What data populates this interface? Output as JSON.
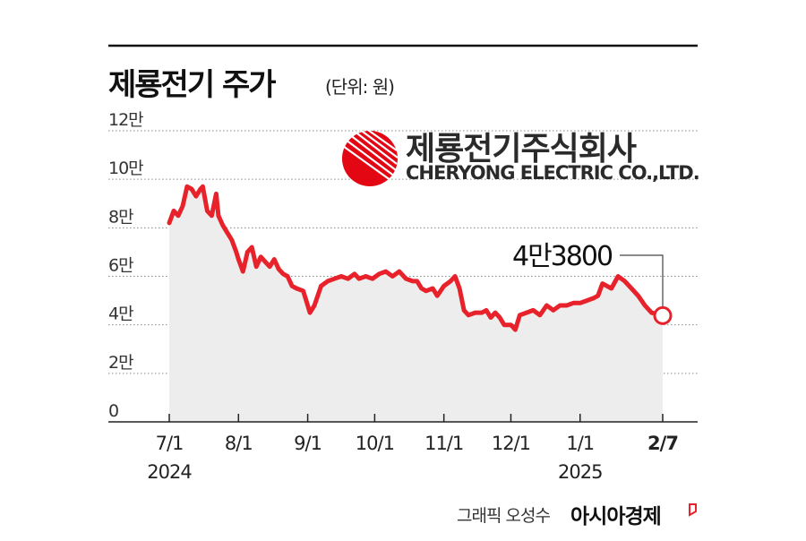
{
  "header": {
    "title": "제룡전기 주가",
    "unit": "(단위: 원)"
  },
  "logo": {
    "name_ko": "제룡전기주식회사",
    "name_en": "CHERYONG ELECTRIC CO.,LTD."
  },
  "footer": {
    "credit": "그래픽 오성수",
    "brand": "아시아경제"
  },
  "colors": {
    "line": "#e8222b",
    "area": "#ededed",
    "logo_red": "#e30613"
  },
  "chart_data": {
    "type": "area",
    "title": "제룡전기 주가",
    "unit": "원",
    "ylim": [
      0,
      120000
    ],
    "yticks": [
      {
        "v": 0,
        "label": "0"
      },
      {
        "v": 20000,
        "label": "2만"
      },
      {
        "v": 40000,
        "label": "4만"
      },
      {
        "v": 60000,
        "label": "6만"
      },
      {
        "v": 80000,
        "label": "8만"
      },
      {
        "v": 100000,
        "label": "10만"
      },
      {
        "v": 120000,
        "label": "12만"
      }
    ],
    "xlim": [
      "2024-07-01",
      "2025-02-07"
    ],
    "xticks": [
      {
        "date": "2024-07-01",
        "label": "7/1",
        "sub": "2024",
        "bold": false
      },
      {
        "date": "2024-08-01",
        "label": "8/1",
        "sub": "",
        "bold": false
      },
      {
        "date": "2024-09-01",
        "label": "9/1",
        "sub": "",
        "bold": false
      },
      {
        "date": "2024-10-01",
        "label": "10/1",
        "sub": "",
        "bold": false
      },
      {
        "date": "2024-11-01",
        "label": "11/1",
        "sub": "",
        "bold": false
      },
      {
        "date": "2024-12-01",
        "label": "12/1",
        "sub": "",
        "bold": false
      },
      {
        "date": "2025-01-01",
        "label": "1/1",
        "sub": "2025",
        "bold": false
      },
      {
        "date": "2025-02-07",
        "label": "2/7",
        "sub": "",
        "bold": true
      }
    ],
    "grid": true,
    "series": [
      {
        "points": [
          [
            "2024-07-01",
            82000
          ],
          [
            "2024-07-03",
            87000
          ],
          [
            "2024-07-05",
            85000
          ],
          [
            "2024-07-07",
            89000
          ],
          [
            "2024-07-09",
            97000
          ],
          [
            "2024-07-11",
            96000
          ],
          [
            "2024-07-13",
            93000
          ],
          [
            "2024-07-15",
            96000
          ],
          [
            "2024-07-16",
            97000
          ],
          [
            "2024-07-18",
            87000
          ],
          [
            "2024-07-20",
            85000
          ],
          [
            "2024-07-22",
            94000
          ],
          [
            "2024-07-23",
            85000
          ],
          [
            "2024-07-25",
            81000
          ],
          [
            "2024-07-27",
            78000
          ],
          [
            "2024-07-29",
            75000
          ],
          [
            "2024-07-31",
            70000
          ],
          [
            "2024-08-01",
            67000
          ],
          [
            "2024-08-03",
            62000
          ],
          [
            "2024-08-05",
            70000
          ],
          [
            "2024-08-07",
            72000
          ],
          [
            "2024-08-09",
            64000
          ],
          [
            "2024-08-11",
            68000
          ],
          [
            "2024-08-13",
            66000
          ],
          [
            "2024-08-15",
            64000
          ],
          [
            "2024-08-17",
            67000
          ],
          [
            "2024-08-19",
            63000
          ],
          [
            "2024-08-21",
            61000
          ],
          [
            "2024-08-23",
            60000
          ],
          [
            "2024-08-25",
            56000
          ],
          [
            "2024-08-27",
            55000
          ],
          [
            "2024-08-30",
            54000
          ],
          [
            "2024-09-01",
            48000
          ],
          [
            "2024-09-02",
            45000
          ],
          [
            "2024-09-04",
            48000
          ],
          [
            "2024-09-07",
            56000
          ],
          [
            "2024-09-10",
            58000
          ],
          [
            "2024-09-13",
            59000
          ],
          [
            "2024-09-16",
            60000
          ],
          [
            "2024-09-19",
            59000
          ],
          [
            "2024-09-22",
            61000
          ],
          [
            "2024-09-24",
            59000
          ],
          [
            "2024-09-27",
            60000
          ],
          [
            "2024-09-30",
            59000
          ],
          [
            "2024-10-03",
            61000
          ],
          [
            "2024-10-06",
            62000
          ],
          [
            "2024-10-09",
            60000
          ],
          [
            "2024-10-12",
            62000
          ],
          [
            "2024-10-15",
            59000
          ],
          [
            "2024-10-18",
            58000
          ],
          [
            "2024-10-20",
            58000
          ],
          [
            "2024-10-22",
            55000
          ],
          [
            "2024-10-24",
            54000
          ],
          [
            "2024-10-27",
            55000
          ],
          [
            "2024-10-29",
            52000
          ],
          [
            "2024-11-01",
            56000
          ],
          [
            "2024-11-04",
            58000
          ],
          [
            "2024-11-06",
            60000
          ],
          [
            "2024-11-08",
            55000
          ],
          [
            "2024-11-10",
            46000
          ],
          [
            "2024-11-12",
            44000
          ],
          [
            "2024-11-15",
            45000
          ],
          [
            "2024-11-18",
            45000
          ],
          [
            "2024-11-20",
            46000
          ],
          [
            "2024-11-22",
            43000
          ],
          [
            "2024-11-24",
            45000
          ],
          [
            "2024-11-26",
            43000
          ],
          [
            "2024-11-28",
            40000
          ],
          [
            "2024-12-01",
            40000
          ],
          [
            "2024-12-03",
            38000
          ],
          [
            "2024-12-05",
            44000
          ],
          [
            "2024-12-08",
            45000
          ],
          [
            "2024-12-11",
            46000
          ],
          [
            "2024-12-14",
            44000
          ],
          [
            "2024-12-17",
            48000
          ],
          [
            "2024-12-20",
            46000
          ],
          [
            "2024-12-23",
            48000
          ],
          [
            "2024-12-26",
            48000
          ],
          [
            "2024-12-29",
            49000
          ],
          [
            "2025-01-01",
            49000
          ],
          [
            "2025-01-04",
            50000
          ],
          [
            "2025-01-07",
            51000
          ],
          [
            "2025-01-09",
            52000
          ],
          [
            "2025-01-11",
            57000
          ],
          [
            "2025-01-13",
            56000
          ],
          [
            "2025-01-15",
            55000
          ],
          [
            "2025-01-18",
            60000
          ],
          [
            "2025-01-21",
            58000
          ],
          [
            "2025-01-24",
            55000
          ],
          [
            "2025-01-27",
            52000
          ],
          [
            "2025-01-30",
            48000
          ],
          [
            "2025-02-02",
            45000
          ],
          [
            "2025-02-07",
            43800
          ]
        ]
      }
    ],
    "annotations": [
      {
        "date": "2025-02-07",
        "value": 43800,
        "label": "4만3800"
      }
    ]
  }
}
